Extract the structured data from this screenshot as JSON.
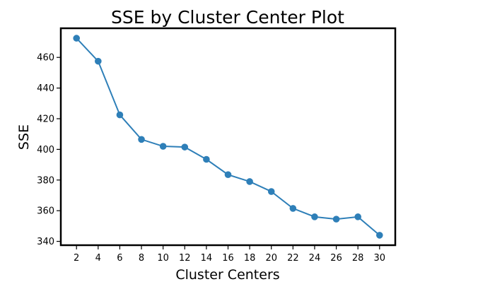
{
  "chart_data": {
    "type": "line",
    "title": "SSE by Cluster Center Plot",
    "xlabel": "Cluster Centers",
    "ylabel": "SSE",
    "x": [
      2,
      4,
      6,
      8,
      10,
      12,
      14,
      16,
      18,
      20,
      22,
      24,
      26,
      28,
      30
    ],
    "series": [
      {
        "values": [
          472.5,
          457.5,
          422.5,
          406.5,
          402.0,
          401.5,
          393.5,
          383.5,
          379.0,
          372.5,
          361.5,
          356.0,
          354.5,
          356.0,
          344.0
        ],
        "color": "#2e7fb8",
        "marker": "circle"
      }
    ],
    "xticks": [
      2,
      4,
      6,
      8,
      10,
      12,
      14,
      16,
      18,
      20,
      22,
      24,
      26,
      28,
      30
    ],
    "yticks": [
      340,
      360,
      380,
      400,
      420,
      440,
      460
    ],
    "xlim": [
      0.55,
      31.45
    ],
    "ylim": [
      337.5,
      479.0
    ],
    "grid": false,
    "legend": "none"
  }
}
